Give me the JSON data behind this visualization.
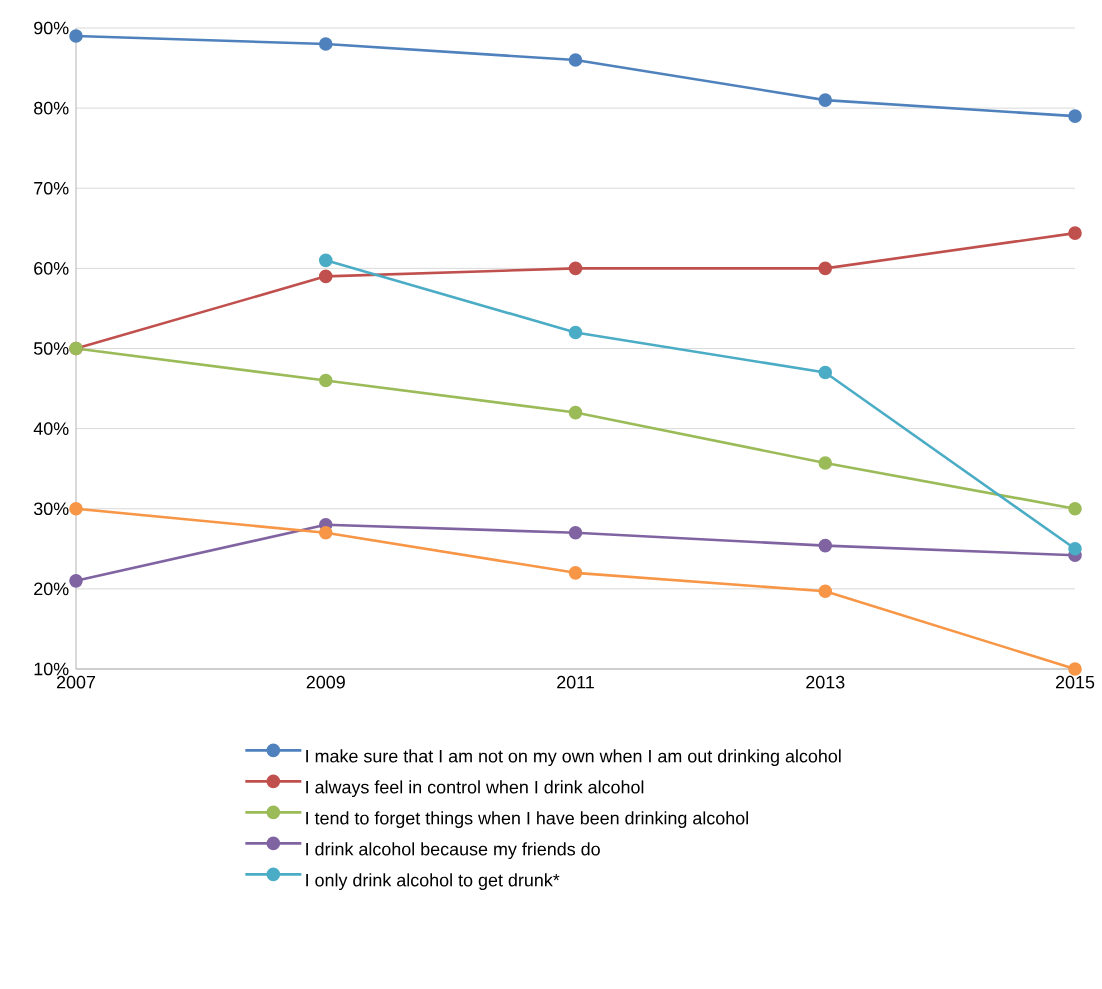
{
  "chart_data": {
    "type": "line",
    "categories": [
      "2007",
      "2009",
      "2011",
      "2013",
      "2015"
    ],
    "series": [
      {
        "name": "I make sure that I am not on my own when I am out drinking alcohol",
        "color": "#4f81bd",
        "values": [
          89,
          88,
          86,
          81,
          79
        ]
      },
      {
        "name": "I always feel in control when I drink alcohol",
        "color": "#c0504d",
        "values": [
          50,
          59,
          60,
          60,
          64.4
        ]
      },
      {
        "name": "I tend to forget things when I have been drinking alcohol",
        "color": "#9bbb59",
        "values": [
          50,
          46,
          42,
          35.7,
          30
        ]
      },
      {
        "name": "I drink alcohol because my friends do",
        "color": "#8064a2",
        "values": [
          21,
          28,
          27,
          25.4,
          24.2
        ]
      },
      {
        "name": "I only drink alcohol to get drunk*",
        "color": "#4bacc6",
        "values": [
          null,
          61,
          52,
          47,
          25
        ]
      },
      {
        "color": "#f79646",
        "values": [
          30,
          27,
          22,
          19.7,
          10
        ]
      }
    ],
    "ylim": [
      10,
      90
    ],
    "yticks": [
      {
        "value": 10,
        "label": "10%"
      },
      {
        "value": 20,
        "label": "20%"
      },
      {
        "value": 30,
        "label": "30%"
      },
      {
        "value": 40,
        "label": "40%"
      },
      {
        "value": 50,
        "label": "50%"
      },
      {
        "value": 60,
        "label": "60%"
      },
      {
        "value": 70,
        "label": "70%"
      },
      {
        "value": 80,
        "label": "80%"
      },
      {
        "value": 90,
        "label": "90%"
      }
    ],
    "grid": "y",
    "legend": "bottom",
    "marker": "circle",
    "line_style": "solid"
  }
}
